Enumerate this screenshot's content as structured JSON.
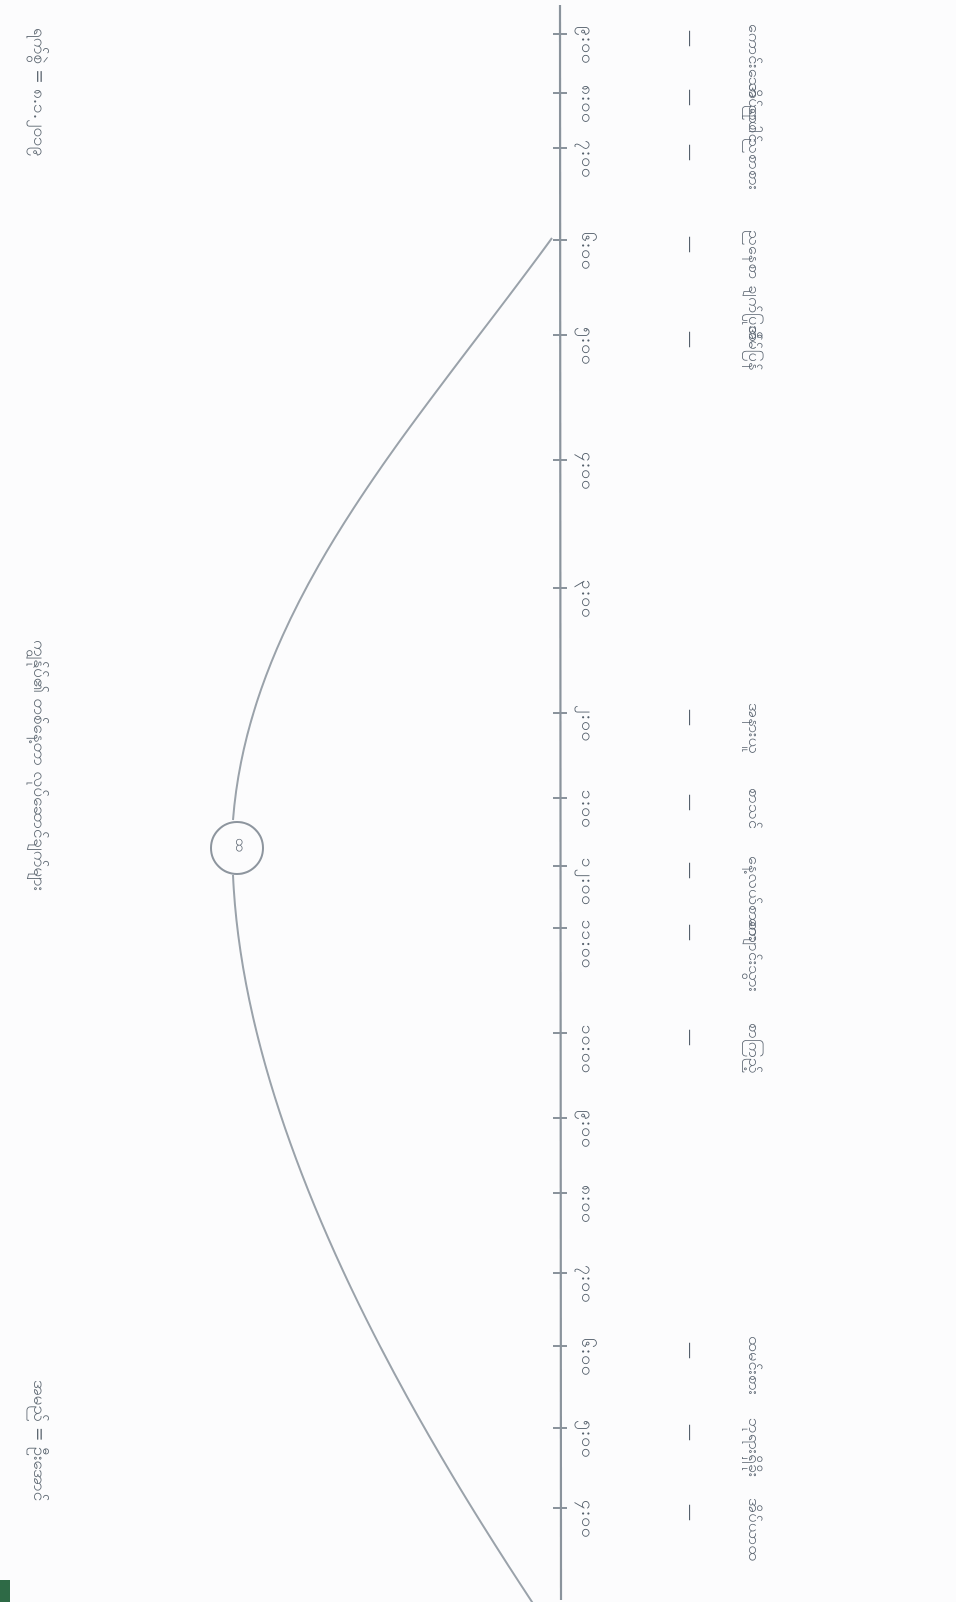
{
  "header": {
    "date_line": "ရက်စွဲ = ၈.၁.၂၀၁၉",
    "title_line": "ကျွန်ုပ်၏ တစ်နေ့တာ လုပ်ဆောင်ချက်များ",
    "name_line": "အမည် = ဦးအောင်"
  },
  "center_label": "ထ",
  "timeline": [
    {
      "time": "၄:၀၀",
      "activity": "အိပ်ယာထ"
    },
    {
      "time": "၅:၀၀",
      "activity": "ဘုရားရှိခိုး"
    },
    {
      "time": "၆:၀၀",
      "activity": "ထမင်းစား"
    },
    {
      "time": "၇:၀၀",
      "activity": ""
    },
    {
      "time": "၈:၀၀",
      "activity": ""
    },
    {
      "time": "၉:၀၀",
      "activity": ""
    },
    {
      "time": "၁၀:၀၀",
      "activity": "စာကြည့်"
    },
    {
      "time": "၁၁:၀၀",
      "activity": "ကျောင်းသွား"
    },
    {
      "time": "၁၂:၀၀",
      "activity": "နေ့လယ်စာစား"
    },
    {
      "time": "၁:၀၀",
      "activity": "စာသင်"
    },
    {
      "time": "၂:၀၀",
      "activity": "အနားယူ"
    },
    {
      "time": "၃:၀၀",
      "activity": ""
    },
    {
      "time": "၄:၀၀",
      "activity": ""
    },
    {
      "time": "၅:၀၀",
      "activity": "အိမ်ပြန်"
    },
    {
      "time": "၆:၀၀",
      "activity": "ညနေစာ ချက်ပြုတ်"
    },
    {
      "time": "၇:၀၀",
      "activity": "ညစာစား"
    },
    {
      "time": "၈:၀၀",
      "activity": "အိပ်ရာဝင်"
    },
    {
      "time": "၉:၀၀",
      "activity": "ကောင်းသော ညပါ"
    }
  ]
}
